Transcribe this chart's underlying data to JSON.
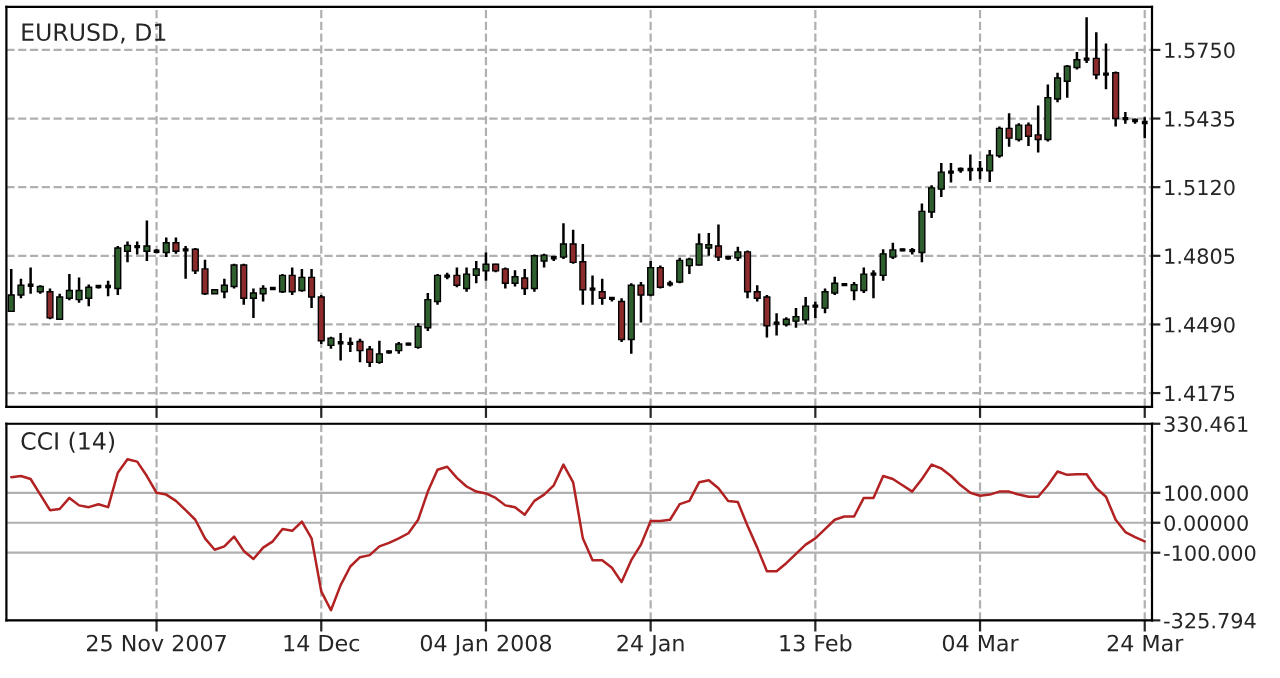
{
  "chart_data": [
    {
      "type": "candlestick",
      "title": "EURUSD, D1",
      "categories": [
        null,
        null,
        null,
        null,
        null,
        null,
        null,
        null,
        null,
        null,
        null,
        null,
        null,
        null,
        null,
        null,
        null,
        null,
        null,
        null,
        null,
        null,
        null,
        null,
        null,
        null,
        null,
        null,
        null,
        null,
        null,
        null,
        null,
        null,
        null,
        null,
        null,
        null,
        null,
        null,
        null,
        null,
        null,
        null,
        null,
        null,
        null,
        null,
        null,
        null,
        null,
        null,
        null,
        null,
        null,
        null,
        null,
        null,
        null,
        null,
        null,
        null,
        null,
        null,
        null,
        null,
        null,
        null,
        null,
        null,
        null,
        null,
        null,
        null,
        null,
        null,
        null,
        null,
        null,
        null,
        null,
        null,
        null,
        null,
        null,
        null,
        null,
        null,
        null,
        null,
        null,
        null,
        null,
        null,
        null,
        null,
        null,
        null,
        null,
        null,
        null,
        null,
        null,
        null,
        null,
        null,
        null,
        null,
        null,
        null,
        null,
        null,
        null,
        null,
        null,
        null,
        null,
        null
      ],
      "ohlc": [
        [
          1.455,
          1.4745,
          1.455,
          1.4625
        ],
        [
          1.4625,
          1.47,
          1.461,
          1.467
        ],
        [
          1.467,
          1.4751,
          1.4631,
          1.467
        ],
        [
          1.464,
          1.467,
          1.4631,
          1.4664
        ],
        [
          1.464,
          1.4655,
          1.4514,
          1.452
        ],
        [
          1.4514,
          1.4631,
          1.4511,
          1.4616
        ],
        [
          1.461,
          1.4721,
          1.4601,
          1.4646
        ],
        [
          1.4604,
          1.4706,
          1.4589,
          1.4646
        ],
        [
          1.461,
          1.4673,
          1.4574,
          1.4661
        ],
        [
          1.4664,
          1.467,
          1.4655,
          1.4664
        ],
        [
          1.4664,
          1.4691,
          1.4619,
          1.4664
        ],
        [
          1.4655,
          1.485,
          1.4625,
          1.4841
        ],
        [
          1.4826,
          1.4871,
          1.4775,
          1.4853
        ],
        [
          1.4847,
          1.4871,
          1.4811,
          1.4847
        ],
        [
          1.4826,
          1.4967,
          1.4781,
          1.485
        ],
        [
          1.4826,
          1.4835,
          1.4817,
          1.4826
        ],
        [
          1.482,
          1.4889,
          1.4799,
          1.4865
        ],
        [
          1.4865,
          1.4889,
          1.4814,
          1.4826
        ],
        [
          1.4832,
          1.485,
          1.47,
          1.4832
        ],
        [
          1.4835,
          1.4841,
          1.4721,
          1.4736
        ],
        [
          1.4745,
          1.4787,
          1.4625,
          1.4631
        ],
        [
          1.4631,
          1.4649,
          1.4631,
          1.4649
        ],
        [
          1.464,
          1.47,
          1.461,
          1.467
        ],
        [
          1.4664,
          1.4769,
          1.4655,
          1.4763
        ],
        [
          1.4763,
          1.4769,
          1.458,
          1.461
        ],
        [
          1.461,
          1.4655,
          1.452,
          1.4634
        ],
        [
          1.4631,
          1.467,
          1.4595,
          1.4655
        ],
        [
          1.4655,
          1.4661,
          1.4649,
          1.4655
        ],
        [
          1.464,
          1.4721,
          1.4634,
          1.4715
        ],
        [
          1.4715,
          1.4751,
          1.4625,
          1.464
        ],
        [
          1.4646,
          1.4745,
          1.464,
          1.4706
        ],
        [
          1.4706,
          1.4745,
          1.4565,
          1.4616
        ],
        [
          1.4616,
          1.4625,
          1.44,
          1.4415
        ],
        [
          1.4394,
          1.4433,
          1.4379,
          1.4427
        ],
        [
          1.4406,
          1.4451,
          1.4325,
          1.4406
        ],
        [
          1.4403,
          1.443,
          1.4364,
          1.4403
        ],
        [
          1.4412,
          1.4424,
          1.4316,
          1.437
        ],
        [
          1.4376,
          1.4391,
          1.4295,
          1.4316
        ],
        [
          1.4316,
          1.4415,
          1.431,
          1.4355
        ],
        [
          1.4364,
          1.437,
          1.4355,
          1.4364
        ],
        [
          1.437,
          1.4409,
          1.4355,
          1.44
        ],
        [
          1.44,
          1.4406,
          1.4394,
          1.44
        ],
        [
          1.4385,
          1.4496,
          1.4379,
          1.4481
        ],
        [
          1.4475,
          1.4634,
          1.446,
          1.4604
        ],
        [
          1.4595,
          1.4721,
          1.458,
          1.4715
        ],
        [
          1.4712,
          1.4727,
          1.4697,
          1.4712
        ],
        [
          1.4715,
          1.4751,
          1.4661,
          1.467
        ],
        [
          1.4655,
          1.4751,
          1.464,
          1.4721
        ],
        [
          1.4715,
          1.4781,
          1.4679,
          1.4745
        ],
        [
          1.4736,
          1.482,
          1.4691,
          1.4766
        ],
        [
          1.4766,
          1.4769,
          1.473,
          1.4736
        ],
        [
          1.4745,
          1.4751,
          1.4655,
          1.4679
        ],
        [
          1.4679,
          1.4739,
          1.4664,
          1.4709
        ],
        [
          1.4703,
          1.4745,
          1.4625,
          1.4655
        ],
        [
          1.4655,
          1.4811,
          1.464,
          1.4805
        ],
        [
          1.4781,
          1.4814,
          1.4751,
          1.4808
        ],
        [
          1.4796,
          1.4805,
          1.4781,
          1.4796
        ],
        [
          1.4799,
          1.4955,
          1.479,
          1.4859
        ],
        [
          1.4859,
          1.4925,
          1.4769,
          1.4775
        ],
        [
          1.4778,
          1.4859,
          1.458,
          1.4649
        ],
        [
          1.4652,
          1.4715,
          1.458,
          1.4652
        ],
        [
          1.464,
          1.47,
          1.458,
          1.461
        ],
        [
          1.461,
          1.4616,
          1.4595,
          1.461
        ],
        [
          1.4595,
          1.461,
          1.4409,
          1.4421
        ],
        [
          1.4421,
          1.4679,
          1.4355,
          1.467
        ],
        [
          1.467,
          1.4685,
          1.4499,
          1.4625
        ],
        [
          1.4625,
          1.4781,
          1.4619,
          1.4751
        ],
        [
          1.4751,
          1.476,
          1.4655,
          1.4661
        ],
        [
          1.4676,
          1.4691,
          1.4664,
          1.4676
        ],
        [
          1.4685,
          1.4796,
          1.4679,
          1.4784
        ],
        [
          1.476,
          1.4796,
          1.4721,
          1.479
        ],
        [
          1.4763,
          1.4907,
          1.476,
          1.4859
        ],
        [
          1.4841,
          1.491,
          1.4805,
          1.4856
        ],
        [
          1.485,
          1.4949,
          1.4781,
          1.4799
        ],
        [
          1.4796,
          1.4805,
          1.4787,
          1.4796
        ],
        [
          1.4796,
          1.4847,
          1.4781,
          1.4823
        ],
        [
          1.4823,
          1.4829,
          1.461,
          1.464
        ],
        [
          1.464,
          1.467,
          1.4595,
          1.461
        ],
        [
          1.4616,
          1.4625,
          1.443,
          1.4484
        ],
        [
          1.4496,
          1.4541,
          1.4439,
          1.4496
        ],
        [
          1.449,
          1.4523,
          1.4481,
          1.4514
        ],
        [
          1.4505,
          1.4565,
          1.4475,
          1.4526
        ],
        [
          1.4511,
          1.4616,
          1.449,
          1.4574
        ],
        [
          1.4574,
          1.4595,
          1.452,
          1.4574
        ],
        [
          1.4565,
          1.4655,
          1.4541,
          1.464
        ],
        [
          1.4634,
          1.4709,
          1.4625,
          1.4679
        ],
        [
          1.4673,
          1.4679,
          1.4667,
          1.4673
        ],
        [
          1.4646,
          1.4685,
          1.4601,
          1.4673
        ],
        [
          1.4646,
          1.4751,
          1.4634,
          1.4721
        ],
        [
          1.4721,
          1.4739,
          1.461,
          1.4721
        ],
        [
          1.4715,
          1.4835,
          1.4691,
          1.4814
        ],
        [
          1.4799,
          1.4865,
          1.479,
          1.4832
        ],
        [
          1.4832,
          1.4838,
          1.4826,
          1.4832
        ],
        [
          1.4829,
          1.4841,
          1.4811,
          1.4829
        ],
        [
          1.482,
          1.5045,
          1.4775,
          1.5009
        ],
        [
          1.5006,
          1.5129,
          1.4979,
          1.5117
        ],
        [
          1.5111,
          1.5231,
          1.5075,
          1.5189
        ],
        [
          1.5189,
          1.5231,
          1.5141,
          1.5189
        ],
        [
          1.5201,
          1.521,
          1.5186,
          1.5201
        ],
        [
          1.5201,
          1.527,
          1.515,
          1.5201
        ],
        [
          1.5201,
          1.524,
          1.5156,
          1.5201
        ],
        [
          1.5195,
          1.5291,
          1.5144,
          1.5267
        ],
        [
          1.5264,
          1.5399,
          1.5255,
          1.539
        ],
        [
          1.539,
          1.5459,
          1.5306,
          1.5345
        ],
        [
          1.5339,
          1.5414,
          1.533,
          1.5405
        ],
        [
          1.5405,
          1.5417,
          1.5309,
          1.5354
        ],
        [
          1.536,
          1.5495,
          1.5279,
          1.5339
        ],
        [
          1.5339,
          1.5591,
          1.533,
          1.5531
        ],
        [
          1.5525,
          1.5645,
          1.551,
          1.5621
        ],
        [
          1.5606,
          1.5681,
          1.5531,
          1.5675
        ],
        [
          1.5669,
          1.5741,
          1.566,
          1.5705
        ],
        [
          1.5708,
          1.59,
          1.569,
          1.5708
        ],
        [
          1.5711,
          1.5831,
          1.5615,
          1.5636
        ],
        [
          1.5639,
          1.578,
          1.557,
          1.5639
        ],
        [
          1.5645,
          1.5651,
          1.5399,
          1.5435
        ],
        [
          1.5435,
          1.5465,
          1.5411,
          1.5435
        ],
        [
          1.5426,
          1.5435,
          1.5411,
          1.5426
        ],
        [
          1.5417,
          1.5441,
          1.5345,
          1.5417
        ]
      ],
      "colors": [
        "#2f5f2f",
        "#2f5f2f",
        "#000000",
        "#2f5f2f",
        "#8b2b2b",
        "#2f5f2f",
        "#2f5f2f",
        "#2f5f2f",
        "#2f5f2f",
        "#000000",
        "#000000",
        "#2f5f2f",
        "#2f5f2f",
        "#000000",
        "#2f5f2f",
        "#000000",
        "#2f5f2f",
        "#8b2b2b",
        "#000000",
        "#8b2b2b",
        "#8b2b2b",
        "#2f5f2f",
        "#2f5f2f",
        "#2f5f2f",
        "#8b2b2b",
        "#2f5f2f",
        "#2f5f2f",
        "#000000",
        "#2f5f2f",
        "#8b2b2b",
        "#2f5f2f",
        "#8b2b2b",
        "#8b2b2b",
        "#2f5f2f",
        "#000000",
        "#000000",
        "#8b2b2b",
        "#8b2b2b",
        "#2f5f2f",
        "#000000",
        "#2f5f2f",
        "#000000",
        "#2f5f2f",
        "#2f5f2f",
        "#2f5f2f",
        "#000000",
        "#8b2b2b",
        "#2f5f2f",
        "#2f5f2f",
        "#2f5f2f",
        "#8b2b2b",
        "#8b2b2b",
        "#2f5f2f",
        "#8b2b2b",
        "#2f5f2f",
        "#2f5f2f",
        "#000000",
        "#2f5f2f",
        "#8b2b2b",
        "#8b2b2b",
        "#000000",
        "#8b2b2b",
        "#000000",
        "#8b2b2b",
        "#2f5f2f",
        "#8b2b2b",
        "#2f5f2f",
        "#8b2b2b",
        "#000000",
        "#2f5f2f",
        "#2f5f2f",
        "#2f5f2f",
        "#2f5f2f",
        "#8b2b2b",
        "#000000",
        "#2f5f2f",
        "#8b2b2b",
        "#8b2b2b",
        "#8b2b2b",
        "#000000",
        "#2f5f2f",
        "#2f5f2f",
        "#2f5f2f",
        "#000000",
        "#2f5f2f",
        "#2f5f2f",
        "#000000",
        "#2f5f2f",
        "#2f5f2f",
        "#000000",
        "#2f5f2f",
        "#2f5f2f",
        "#000000",
        "#000000",
        "#2f5f2f",
        "#2f5f2f",
        "#2f5f2f",
        "#000000",
        "#000000",
        "#000000",
        "#000000",
        "#2f5f2f",
        "#2f5f2f",
        "#8b2b2b",
        "#2f5f2f",
        "#8b2b2b",
        "#8b2b2b",
        "#2f5f2f",
        "#2f5f2f",
        "#2f5f2f",
        "#2f5f2f",
        "#000000",
        "#8b2b2b",
        "#000000",
        "#8b2b2b",
        "#000000",
        "#000000",
        "#000000"
      ],
      "ylim": [
        1.4112,
        1.5948
      ],
      "yticks": [
        {
          "value": 1.575,
          "label": "1.5750"
        },
        {
          "value": 1.5435,
          "label": "1.5435"
        },
        {
          "value": 1.512,
          "label": "1.5120"
        },
        {
          "value": 1.4805,
          "label": "1.4805"
        },
        {
          "value": 1.449,
          "label": "1.4490"
        },
        {
          "value": 1.4175,
          "label": "1.4175"
        }
      ],
      "grid": true,
      "tick_labels": "y"
    },
    {
      "type": "line",
      "title": "CCI (14)",
      "categories": [
        null,
        null,
        null,
        null,
        null,
        null,
        null,
        null,
        null,
        null,
        null,
        null,
        null,
        null,
        null,
        "25 Nov 2007",
        null,
        null,
        null,
        null,
        null,
        null,
        null,
        null,
        null,
        null,
        null,
        null,
        null,
        null,
        null,
        null,
        "14 Dec",
        null,
        null,
        null,
        null,
        null,
        null,
        null,
        null,
        null,
        null,
        null,
        null,
        null,
        null,
        null,
        null,
        "04 Jan 2008",
        null,
        null,
        null,
        null,
        null,
        null,
        null,
        null,
        null,
        null,
        null,
        null,
        null,
        null,
        null,
        null,
        "24 Jan",
        null,
        null,
        null,
        null,
        null,
        null,
        null,
        null,
        null,
        null,
        null,
        null,
        null,
        null,
        null,
        null,
        "13 Feb",
        null,
        null,
        null,
        null,
        null,
        null,
        null,
        null,
        null,
        null,
        null,
        null,
        null,
        null,
        null,
        null,
        "04 Mar",
        null,
        null,
        null,
        null,
        null,
        null,
        null,
        null,
        null,
        null,
        null,
        null,
        null,
        null,
        null,
        null,
        "24 Mar"
      ],
      "series": [
        {
          "color": "#b22222",
          "values": [
            152,
            156,
            146,
            94,
            42,
            46,
            83,
            58,
            52,
            62,
            52,
            167,
            212,
            204,
            156,
            100,
            94,
            73,
            42,
            10,
            -52,
            -90,
            -79,
            -46,
            -94,
            -121,
            -83,
            -62,
            -21,
            -27,
            4,
            -52,
            -229,
            -292,
            -208,
            -146,
            -115,
            -108,
            -79,
            -67,
            -52,
            -35,
            10,
            104,
            177,
            187,
            150,
            121,
            104,
            98,
            83,
            58,
            52,
            27,
            73,
            94,
            125,
            194,
            135,
            -52,
            -125,
            -125,
            -150,
            -198,
            -125,
            -73,
            6,
            6,
            10,
            62,
            73,
            135,
            142,
            115,
            73,
            69,
            -10,
            -83,
            -162,
            -162,
            -135,
            -104,
            -73,
            -52,
            -21,
            10,
            21,
            21,
            83,
            83,
            156,
            146,
            125,
            104,
            146,
            194,
            181,
            156,
            125,
            100,
            90,
            94,
            104,
            104,
            94,
            87,
            87,
            125,
            171,
            160,
            162,
            162,
            115,
            87,
            10,
            -31,
            -48,
            -62
          ]
        }
      ],
      "ylim": [
        -325.794,
        330.461
      ],
      "yticks": [
        {
          "value": 330.461,
          "label": "330.461"
        },
        {
          "value": 100,
          "label": "100.000"
        },
        {
          "value": 0,
          "label": "0.00000"
        },
        {
          "value": -100,
          "label": "-100.000"
        },
        {
          "value": -325.794,
          "label": "-325.794"
        }
      ],
      "grid": true
    }
  ]
}
